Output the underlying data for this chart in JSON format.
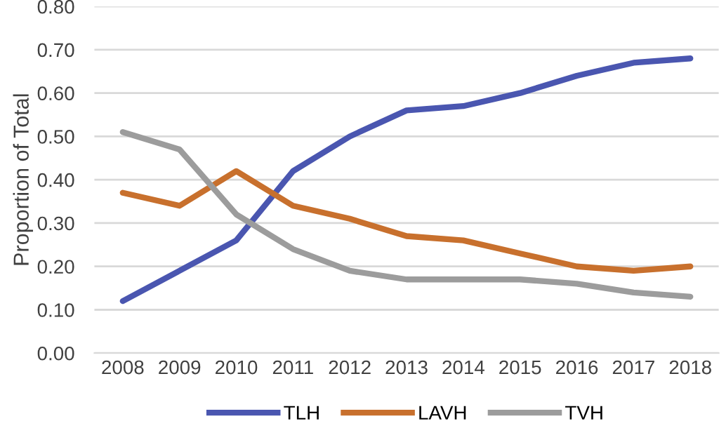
{
  "chart_data": {
    "type": "line",
    "ylabel": "Proportion of Total",
    "categories": [
      "2008",
      "2009",
      "2010",
      "2011",
      "2012",
      "2013",
      "2014",
      "2015",
      "2016",
      "2017",
      "2018"
    ],
    "series": [
      {
        "name": "TLH",
        "color": "#4a56b0",
        "values": [
          0.12,
          0.19,
          0.26,
          0.42,
          0.5,
          0.56,
          0.57,
          0.6,
          0.64,
          0.67,
          0.68
        ]
      },
      {
        "name": "LAVH",
        "color": "#c8702d",
        "values": [
          0.37,
          0.34,
          0.42,
          0.34,
          0.31,
          0.27,
          0.26,
          0.23,
          0.2,
          0.19,
          0.2
        ]
      },
      {
        "name": "TVH",
        "color": "#9c9c9c",
        "values": [
          0.51,
          0.47,
          0.32,
          0.24,
          0.19,
          0.17,
          0.17,
          0.17,
          0.16,
          0.14,
          0.13
        ]
      }
    ],
    "ylim": [
      0,
      0.8
    ],
    "yticks": [
      {
        "value": 0,
        "label": "0.00"
      },
      {
        "value": 0.1,
        "label": "0.10"
      },
      {
        "value": 0.2,
        "label": "0.20"
      },
      {
        "value": 0.3,
        "label": "0.30"
      },
      {
        "value": 0.4,
        "label": "0.40"
      },
      {
        "value": 0.5,
        "label": "0.50"
      },
      {
        "value": 0.6,
        "label": "0.60"
      },
      {
        "value": 0.7,
        "label": "0.70"
      },
      {
        "value": 0.8,
        "label": "0.80"
      }
    ],
    "grid": "y",
    "legend": "bottom",
    "marker": "none",
    "line_style": "solid"
  }
}
